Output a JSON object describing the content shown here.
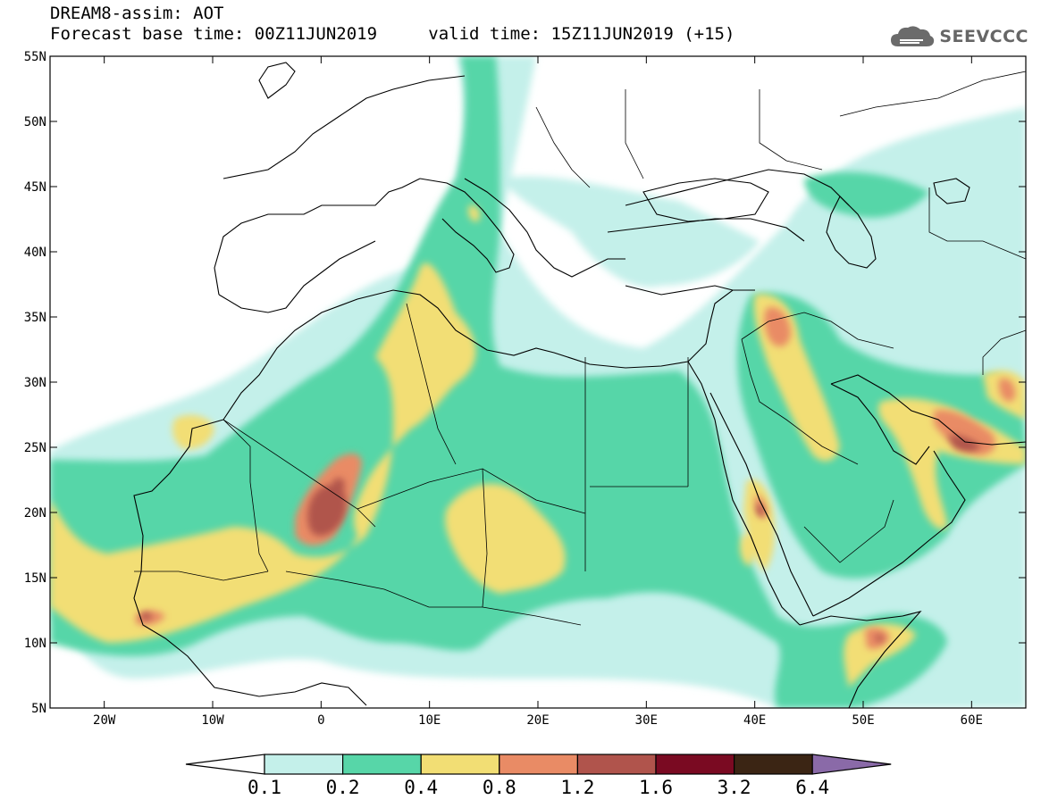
{
  "header": {
    "title": "DREAM8-assim: AOT",
    "base_time_label": "Forecast base time: 00Z11JUN2019",
    "valid_time_label": "valid time: 15Z11JUN2019 (+15)"
  },
  "logo": {
    "text": "SEEVCCC",
    "icon": "cloud-icon"
  },
  "map": {
    "lon_range": [
      -25,
      65
    ],
    "lat_range": [
      5,
      55
    ],
    "lat_ticks": [
      "5N",
      "10N",
      "15N",
      "20N",
      "25N",
      "30N",
      "35N",
      "40N",
      "45N",
      "50N",
      "55N"
    ],
    "lon_ticks": [
      "20W",
      "10W",
      "0",
      "10E",
      "20E",
      "30E",
      "40E",
      "50E",
      "60E"
    ]
  },
  "colorbar": {
    "labels": [
      "0.1",
      "0.2",
      "0.4",
      "0.8",
      "1.2",
      "1.6",
      "3.2",
      "6.4"
    ],
    "colors": [
      "#c4f0ea",
      "#57d6a8",
      "#f2de74",
      "#e98b65",
      "#b0544c",
      "#7a0a22",
      "#3b2514",
      "#8a6aa8"
    ],
    "left_arrow_color": "#ffffff"
  }
}
